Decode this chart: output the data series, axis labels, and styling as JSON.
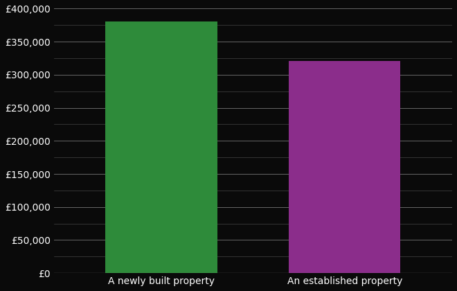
{
  "categories": [
    "A newly built property",
    "An established property"
  ],
  "values": [
    381000,
    321000
  ],
  "bar_colors": [
    "#2e8b3a",
    "#8b2d8b"
  ],
  "background_color": "#0a0a0a",
  "text_color": "#ffffff",
  "grid_color_major": "#666666",
  "grid_color_minor": "#444444",
  "ylim": [
    0,
    400000
  ],
  "ytick_major_step": 50000,
  "ytick_minor_step": 25000,
  "bar_width": 0.28,
  "x_positions": [
    0.27,
    0.73
  ],
  "xlim": [
    0,
    1
  ],
  "figsize": [
    6.6,
    4.2
  ],
  "dpi": 100,
  "xlabel_fontsize": 10,
  "ylabel_fontsize": 10
}
